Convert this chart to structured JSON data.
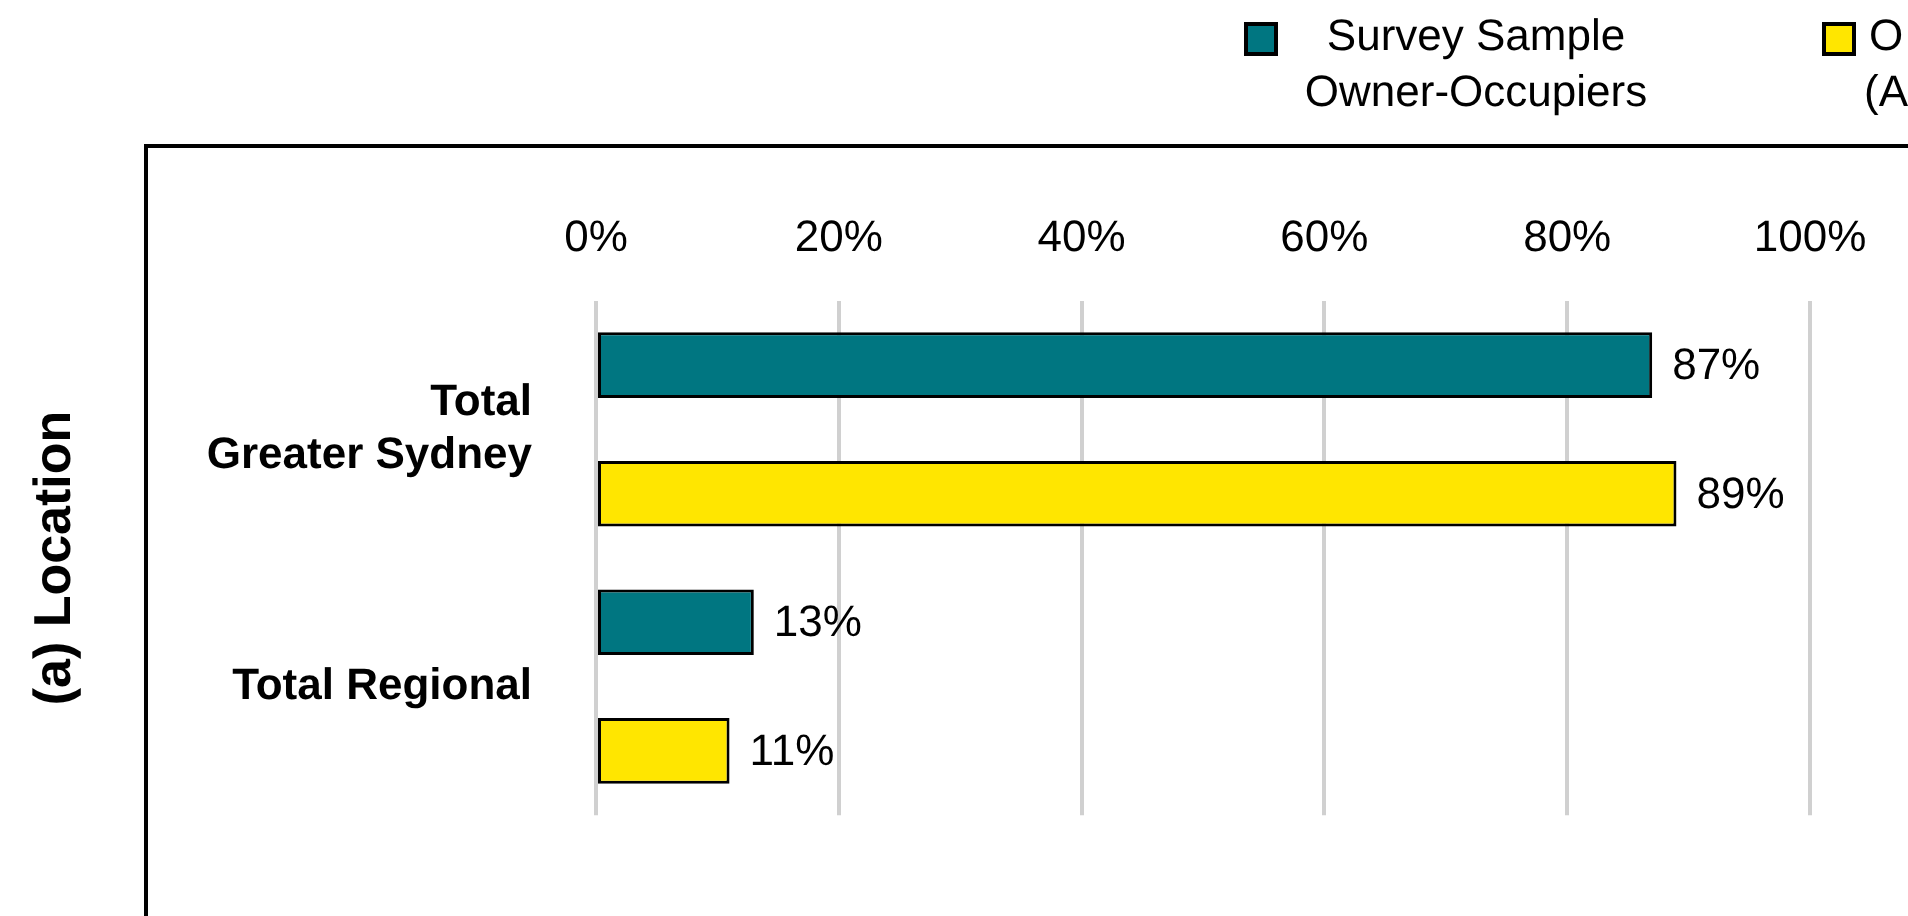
{
  "chart_data": {
    "type": "bar",
    "orientation": "horizontal",
    "ylabel": "(a) Location",
    "categories": [
      "Total Greater Sydney",
      "Total Regional"
    ],
    "series": [
      {
        "name": "Survey Sample Owner-Occupiers",
        "color": "#007681",
        "values": [
          87,
          13
        ],
        "value_labels": [
          "87%",
          "13%"
        ]
      },
      {
        "name": "O (A",
        "color": "#ffe600",
        "values": [
          89,
          11
        ],
        "value_labels": [
          "89%",
          "11%"
        ]
      }
    ],
    "xlim": [
      0,
      100
    ],
    "xticks": [
      {
        "value": 0,
        "label": "0%"
      },
      {
        "value": 20,
        "label": "20%"
      },
      {
        "value": 40,
        "label": "40%"
      },
      {
        "value": 60,
        "label": "60%"
      },
      {
        "value": 80,
        "label": "80%"
      },
      {
        "value": 100,
        "label": "100%"
      }
    ],
    "grid": "x",
    "legend": "top right"
  }
}
